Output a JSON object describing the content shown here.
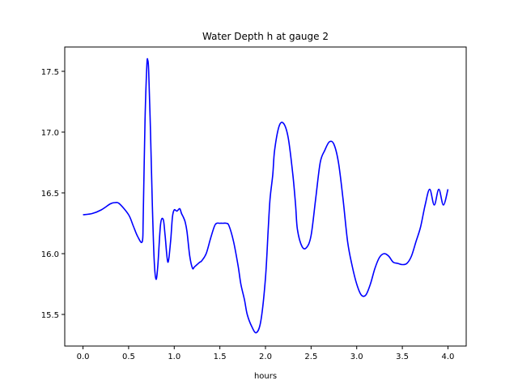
{
  "chart_data": {
    "type": "line",
    "title": "Water Depth h at gauge 2",
    "xlabel": "hours",
    "ylabel": "",
    "xlim": [
      -0.2,
      4.2
    ],
    "ylim": [
      15.24,
      17.7
    ],
    "xticks": [
      0.0,
      0.5,
      1.0,
      1.5,
      2.0,
      2.5,
      3.0,
      3.5,
      4.0
    ],
    "xtick_labels": [
      "0.0",
      "0.5",
      "1.0",
      "1.5",
      "2.0",
      "2.5",
      "3.0",
      "3.5",
      "4.0"
    ],
    "yticks": [
      15.5,
      16.0,
      16.5,
      17.0,
      17.5
    ],
    "ytick_labels": [
      "15.5",
      "16.0",
      "16.5",
      "17.0",
      "17.5"
    ],
    "grid": false,
    "legend": "none",
    "colors": {
      "line": "#0000ff",
      "axes": "#000000",
      "background": "#ffffff"
    },
    "series": [
      {
        "x": [
          0.0,
          0.1,
          0.2,
          0.3,
          0.35,
          0.4,
          0.5,
          0.55,
          0.6,
          0.65,
          0.66,
          0.68,
          0.7,
          0.71,
          0.72,
          0.74,
          0.76,
          0.78,
          0.8,
          0.82,
          0.85,
          0.88,
          0.9,
          0.93,
          0.96,
          0.98,
          1.0,
          1.03,
          1.06,
          1.08,
          1.1,
          1.12,
          1.14,
          1.17,
          1.2,
          1.22,
          1.25,
          1.28,
          1.3,
          1.35,
          1.4,
          1.45,
          1.5,
          1.53,
          1.57,
          1.6,
          1.65,
          1.7,
          1.73,
          1.77,
          1.8,
          1.85,
          1.9,
          1.95,
          2.0,
          2.03,
          2.05,
          2.08,
          2.1,
          2.15,
          2.2,
          2.25,
          2.3,
          2.33,
          2.35,
          2.4,
          2.45,
          2.5,
          2.55,
          2.6,
          2.65,
          2.7,
          2.75,
          2.8,
          2.85,
          2.9,
          2.95,
          3.0,
          3.05,
          3.1,
          3.15,
          3.2,
          3.25,
          3.3,
          3.35,
          3.4,
          3.45,
          3.5,
          3.55,
          3.6,
          3.65,
          3.7,
          3.75,
          3.8,
          3.85,
          3.9,
          3.95,
          4.0
        ],
        "y": [
          16.32,
          16.33,
          16.36,
          16.41,
          16.42,
          16.41,
          16.32,
          16.23,
          16.14,
          16.1,
          16.3,
          17.1,
          17.55,
          17.59,
          17.5,
          17.0,
          16.4,
          15.95,
          15.79,
          15.9,
          16.24,
          16.28,
          16.15,
          15.93,
          16.1,
          16.3,
          16.36,
          16.35,
          16.37,
          16.33,
          16.3,
          16.26,
          16.18,
          15.98,
          15.88,
          15.89,
          15.91,
          15.93,
          15.94,
          16.0,
          16.13,
          16.24,
          16.25,
          16.25,
          16.25,
          16.23,
          16.1,
          15.9,
          15.75,
          15.62,
          15.5,
          15.4,
          15.35,
          15.45,
          15.8,
          16.2,
          16.45,
          16.65,
          16.85,
          17.05,
          17.07,
          16.95,
          16.65,
          16.4,
          16.2,
          16.06,
          16.05,
          16.15,
          16.45,
          16.75,
          16.85,
          16.92,
          16.9,
          16.75,
          16.45,
          16.1,
          15.9,
          15.75,
          15.66,
          15.66,
          15.75,
          15.88,
          15.97,
          16.0,
          15.98,
          15.93,
          15.92,
          15.91,
          15.92,
          15.98,
          16.1,
          16.22,
          16.4,
          16.53,
          16.4,
          16.53,
          16.4,
          16.53
        ]
      }
    ]
  }
}
